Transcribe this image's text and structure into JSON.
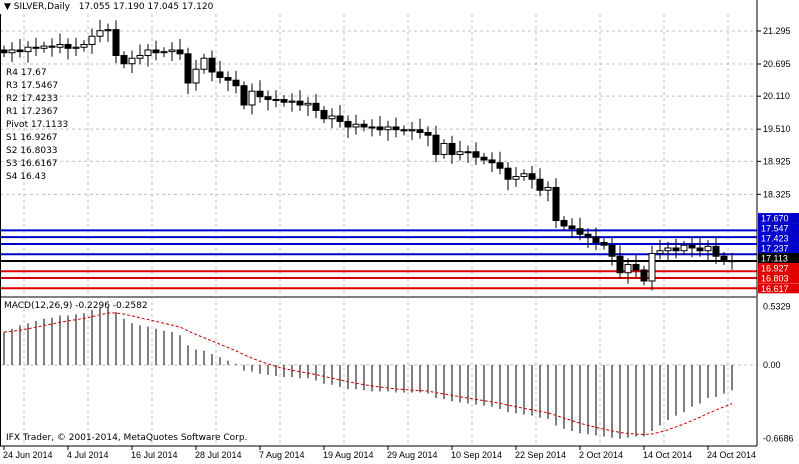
{
  "header": {
    "symbol": "SILVER,Daily",
    "ohlc": "17.055 17.190 17.045 17.120"
  },
  "pivots": [
    {
      "name": "R4",
      "label": "R4 17.67",
      "value": 17.67,
      "tag": "17.670",
      "color": "#0000cc"
    },
    {
      "name": "R3",
      "label": "R3 17.5467",
      "value": 17.5467,
      "tag": "17.547",
      "color": "#0000cc"
    },
    {
      "name": "R2",
      "label": "R2 17.4233",
      "value": 17.4233,
      "tag": "17.423",
      "color": "#0000cc"
    },
    {
      "name": "R1",
      "label": "R1 17.2367",
      "value": 17.2367,
      "tag": "17.237",
      "color": "#0000cc"
    },
    {
      "name": "Pivot",
      "label": "Pivot 17.1133",
      "value": 17.1133,
      "tag": "17.113",
      "color": "#000000"
    },
    {
      "name": "S1",
      "label": "S1 16.9267",
      "value": 16.9267,
      "tag": "16.927",
      "color": "#e00000"
    },
    {
      "name": "S2",
      "label": "S2 16.8033",
      "value": 16.8033,
      "tag": "16.803",
      "color": "#e00000"
    },
    {
      "name": "S3",
      "label": "S3 16.6167",
      "value": 16.6167,
      "tag": "16.617",
      "color": "#e00000"
    },
    {
      "name": "S4",
      "label": "S4 16.43",
      "value": 16.43,
      "tag": "",
      "color": "#e00000"
    }
  ],
  "macd_label": "MACD(12,26,9) -0.2296 -0.2582",
  "copyright": "IFX Trader, © 2001-2014, MetaQuotes Software Corp.",
  "chart_data": {
    "type": "candlestick",
    "price_ticks": [
      "21.295",
      "20.695",
      "20.110",
      "19.510",
      "18.925",
      "18.325"
    ],
    "macd_ticks": [
      "0.5329",
      "0.00",
      "-0.6686"
    ],
    "date_ticks": [
      "24 Jun 2014",
      "4 Jul 2014",
      "16 Jul 2014",
      "28 Jul 2014",
      "7 Aug 2014",
      "19 Aug 2014",
      "29 Aug 2014",
      "10 Sep 2014",
      "22 Sep 2014",
      "2 Oct 2014",
      "14 Oct 2014",
      "24 Oct 2014"
    ],
    "closes": [
      20.9,
      20.95,
      20.92,
      21.0,
      20.98,
      21.02,
      21.0,
      21.05,
      20.98,
      21.0,
      21.05,
      21.2,
      21.3,
      21.32,
      20.85,
      20.7,
      20.8,
      20.85,
      20.95,
      20.9,
      20.92,
      20.95,
      20.88,
      20.35,
      20.6,
      20.8,
      20.55,
      20.45,
      20.4,
      20.3,
      19.95,
      20.2,
      20.1,
      20.05,
      20.05,
      20.0,
      20.02,
      19.95,
      19.98,
      19.85,
      19.7,
      19.75,
      19.65,
      19.55,
      19.6,
      19.55,
      19.55,
      19.5,
      19.55,
      19.5,
      19.48,
      19.5,
      19.45,
      19.4,
      19.05,
      19.25,
      19.05,
      19.1,
      19.1,
      19.0,
      18.95,
      18.9,
      18.8,
      18.6,
      18.65,
      18.7,
      18.6,
      18.4,
      18.45,
      17.85,
      17.75,
      17.7,
      17.6,
      17.55,
      17.45,
      17.4,
      17.2,
      16.9,
      17.05,
      16.95,
      16.75,
      17.25,
      17.3,
      17.35,
      17.3,
      17.4,
      17.35,
      17.3,
      17.38,
      17.2,
      17.12,
      17.12
    ],
    "macd": [
      0.3,
      0.33,
      0.36,
      0.38,
      0.4,
      0.42,
      0.43,
      0.45,
      0.45,
      0.46,
      0.47,
      0.5,
      0.53,
      0.53,
      0.48,
      0.42,
      0.38,
      0.36,
      0.35,
      0.33,
      0.31,
      0.3,
      0.27,
      0.18,
      0.14,
      0.13,
      0.1,
      0.07,
      0.04,
      0.01,
      -0.05,
      -0.06,
      -0.08,
      -0.09,
      -0.1,
      -0.11,
      -0.11,
      -0.12,
      -0.12,
      -0.14,
      -0.17,
      -0.18,
      -0.2,
      -0.22,
      -0.22,
      -0.23,
      -0.24,
      -0.24,
      -0.24,
      -0.25,
      -0.25,
      -0.25,
      -0.25,
      -0.26,
      -0.3,
      -0.31,
      -0.33,
      -0.34,
      -0.35,
      -0.36,
      -0.37,
      -0.38,
      -0.4,
      -0.43,
      -0.44,
      -0.45,
      -0.46,
      -0.48,
      -0.49,
      -0.55,
      -0.58,
      -0.6,
      -0.62,
      -0.63,
      -0.64,
      -0.65,
      -0.66,
      -0.67,
      -0.66,
      -0.65,
      -0.65,
      -0.6,
      -0.55,
      -0.5,
      -0.46,
      -0.43,
      -0.38,
      -0.35,
      -0.3,
      -0.29,
      -0.26,
      -0.23
    ],
    "signal_color": "#cc0000",
    "grid": true
  }
}
